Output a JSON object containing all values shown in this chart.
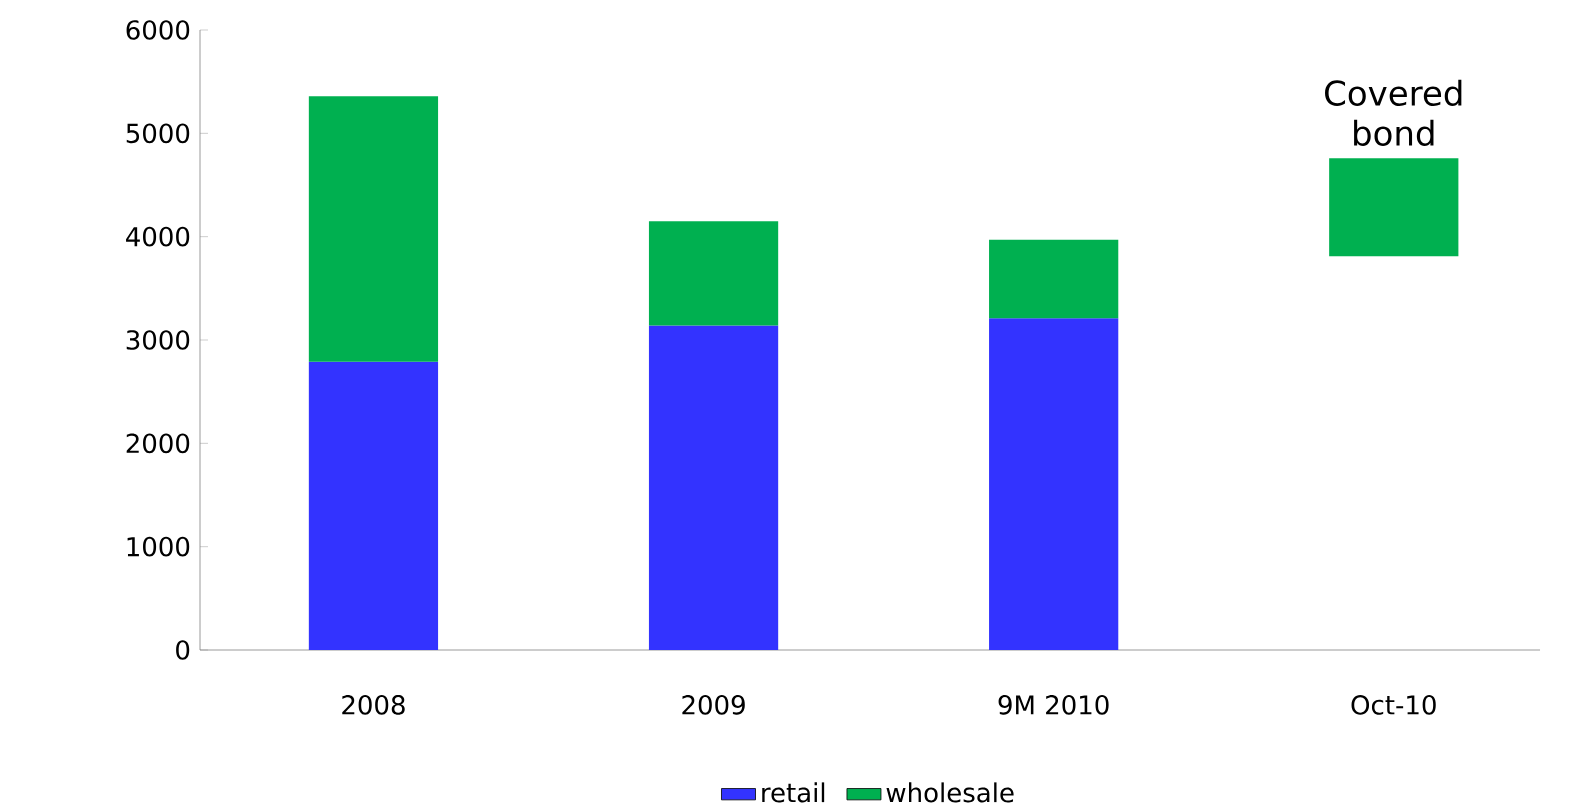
{
  "chart_data": {
    "type": "bar",
    "stacked": true,
    "categories": [
      "2008",
      "2009",
      "9M 2010",
      "Oct-10"
    ],
    "series": [
      {
        "name": "retail",
        "color": "#3333ff",
        "values": [
          2790,
          3140,
          3210,
          null
        ]
      },
      {
        "name": "wholesale",
        "color": "#00b050",
        "values": [
          2570,
          1010,
          760,
          950
        ],
        "base": [
          null,
          null,
          null,
          3810
        ]
      }
    ],
    "ylim": [
      0,
      6000
    ],
    "yticks": [
      0,
      1000,
      2000,
      3000,
      4000,
      5000,
      6000
    ],
    "legend": "bottom",
    "grid": false,
    "annotations": [
      "Covered bond"
    ]
  }
}
